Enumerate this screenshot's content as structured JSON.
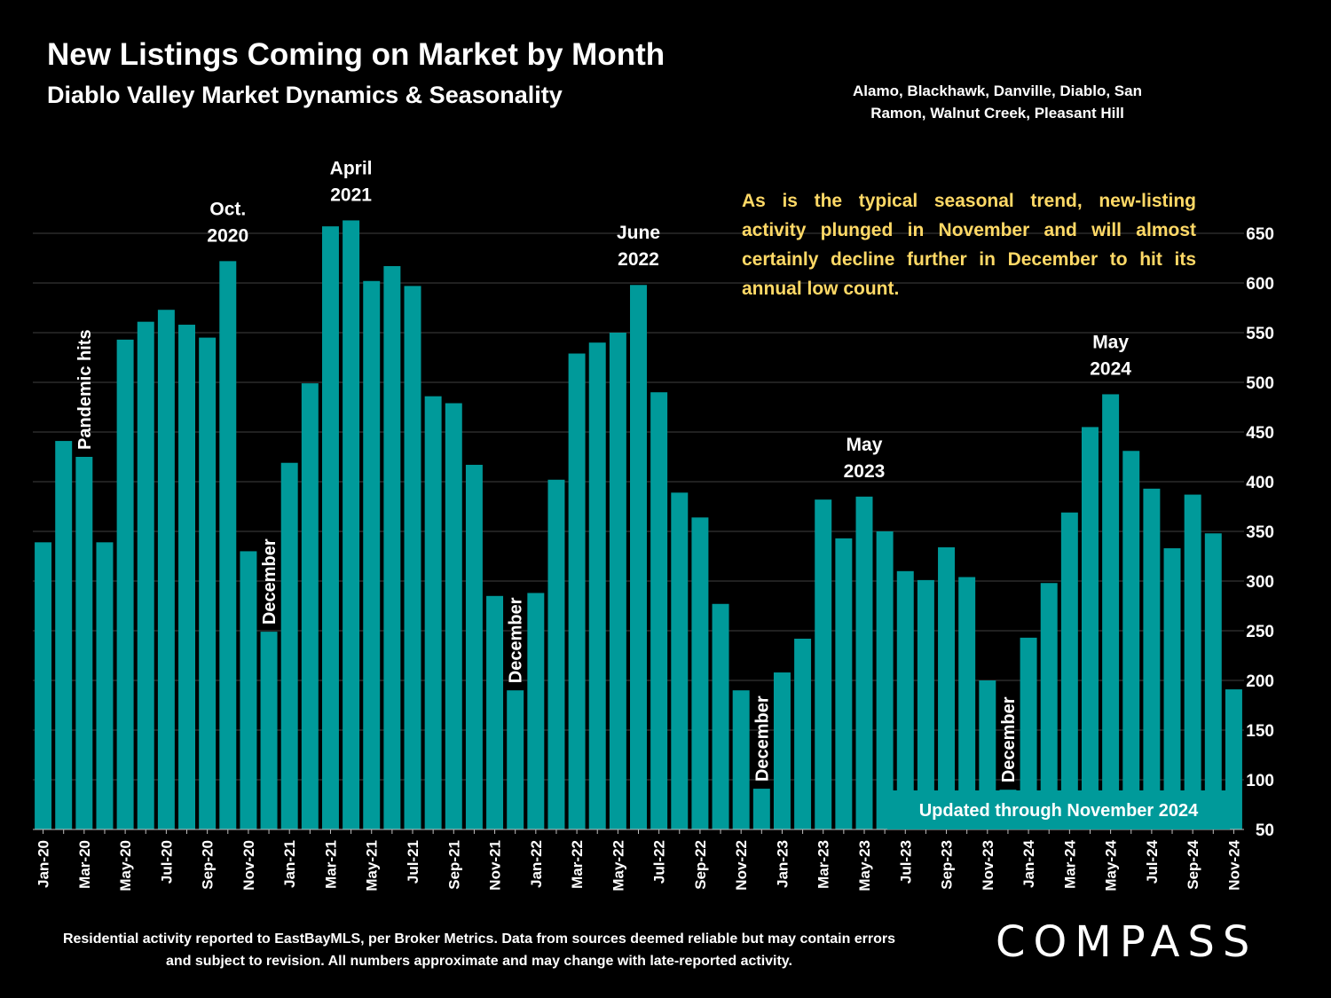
{
  "header": {
    "title": "New Listings Coming on Market by Month",
    "subtitle": "Diablo Valley Market Dynamics & Seasonality",
    "region": "Alamo, Blackhawk, Danville, Diablo, San Ramon, Walnut Creek, Pleasant Hill"
  },
  "commentary": "As is the typical seasonal trend, new-listing activity plunged in November and will almost certainly decline further in December to hit its annual low count.",
  "updated_label": "Updated through November 2024",
  "footnote": "Residential activity reported to EastBayMLS, per Broker Metrics. Data from sources deemed reliable but may contain errors and subject to revision. All numbers approximate and may change with late-reported activity.",
  "logo": "COMPASS",
  "colors": {
    "bar": "#009a9a",
    "annotation": "#ffd966",
    "background": "#000000",
    "grid": "#404040"
  },
  "chart_data": {
    "type": "bar",
    "title": "New Listings Coming on Market by Month",
    "xlabel": "",
    "ylabel": "",
    "ylim": [
      50,
      675
    ],
    "yticks": [
      50,
      100,
      150,
      200,
      250,
      300,
      350,
      400,
      450,
      500,
      550,
      600,
      650
    ],
    "y_axis_side": "right",
    "grid": true,
    "categories": [
      "Jan-20",
      "Feb-20",
      "Mar-20",
      "Apr-20",
      "May-20",
      "Jun-20",
      "Jul-20",
      "Aug-20",
      "Sep-20",
      "Oct-20",
      "Nov-20",
      "Dec-20",
      "Jan-21",
      "Feb-21",
      "Mar-21",
      "Apr-21",
      "May-21",
      "Jun-21",
      "Jul-21",
      "Aug-21",
      "Sep-21",
      "Oct-21",
      "Nov-21",
      "Dec-21",
      "Jan-22",
      "Feb-22",
      "Mar-22",
      "Apr-22",
      "May-22",
      "Jun-22",
      "Jul-22",
      "Aug-22",
      "Sep-22",
      "Oct-22",
      "Nov-22",
      "Dec-22",
      "Jan-23",
      "Feb-23",
      "Mar-23",
      "Apr-23",
      "May-23",
      "Jun-23",
      "Jul-23",
      "Aug-23",
      "Sep-23",
      "Oct-23",
      "Nov-23",
      "Dec-23",
      "Jan-24",
      "Feb-24",
      "Mar-24",
      "Apr-24",
      "May-24",
      "Jun-24",
      "Jul-24",
      "Aug-24",
      "Sep-24",
      "Oct-24",
      "Nov-24"
    ],
    "visible_tick_labels": [
      "Jan-20",
      "Mar-20",
      "May-20",
      "Jul-20",
      "Sep-20",
      "Nov-20",
      "Jan-21",
      "Mar-21",
      "May-21",
      "Jul-21",
      "Sep-21",
      "Nov-21",
      "Jan-22",
      "Mar-22",
      "May-22",
      "Jul-22",
      "Sep-22",
      "Nov-22",
      "Jan-23",
      "Mar-23",
      "May-23",
      "Jul-23",
      "Sep-23",
      "Nov-23",
      "Jan-24",
      "Mar-24",
      "May-24",
      "Jul-24",
      "Sep-24",
      "Nov-24"
    ],
    "values": [
      339,
      441,
      425,
      339,
      543,
      561,
      573,
      558,
      545,
      622,
      330,
      249,
      419,
      499,
      657,
      663,
      602,
      617,
      597,
      486,
      479,
      417,
      285,
      190,
      288,
      402,
      529,
      540,
      550,
      598,
      490,
      389,
      364,
      277,
      190,
      91,
      208,
      242,
      382,
      343,
      385,
      350,
      310,
      301,
      334,
      304,
      200,
      90,
      243,
      298,
      369,
      455,
      488,
      431,
      393,
      333,
      387,
      348,
      191
    ],
    "annotations": [
      {
        "index": 2,
        "text": "Pandemic hits",
        "orientation": "vertical"
      },
      {
        "index": 9,
        "text": "Oct. 2020",
        "orientation": "horizontal"
      },
      {
        "index": 11,
        "text": "December",
        "orientation": "vertical"
      },
      {
        "index": 15,
        "text": "April 2021",
        "orientation": "horizontal"
      },
      {
        "index": 23,
        "text": "December",
        "orientation": "vertical"
      },
      {
        "index": 29,
        "text": "June 2022",
        "orientation": "horizontal"
      },
      {
        "index": 35,
        "text": "December",
        "orientation": "vertical"
      },
      {
        "index": 40,
        "text": "May 2023",
        "orientation": "horizontal"
      },
      {
        "index": 47,
        "text": "December",
        "orientation": "vertical"
      },
      {
        "index": 52,
        "text": "May 2024",
        "orientation": "horizontal"
      }
    ]
  }
}
